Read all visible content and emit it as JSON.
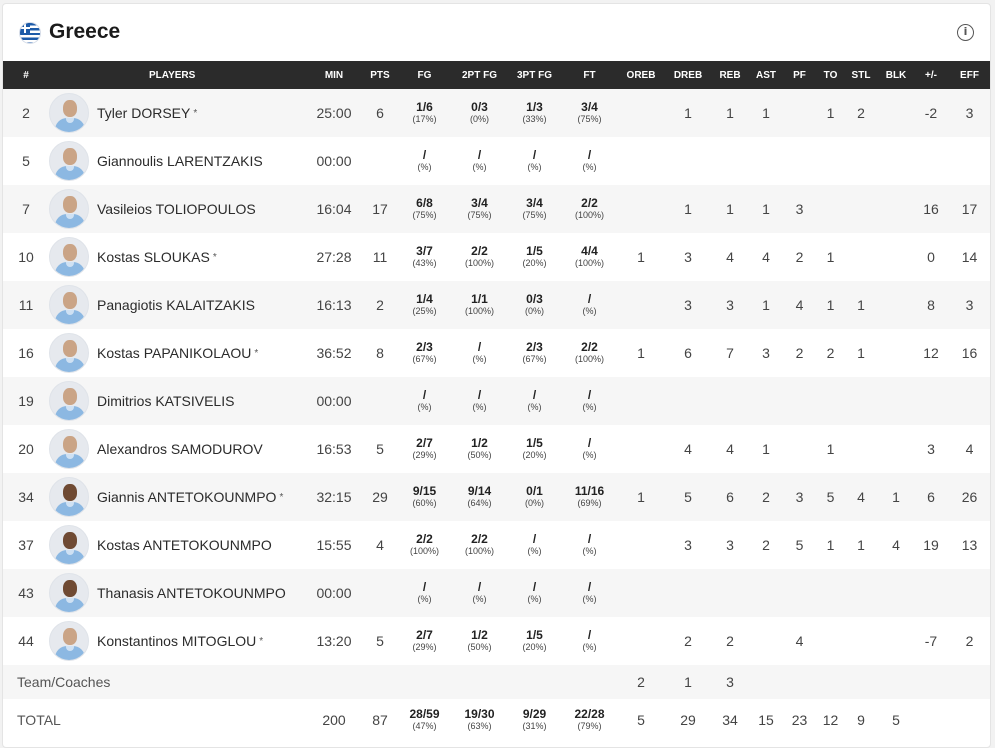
{
  "team": {
    "name": "Greece"
  },
  "columns": [
    "#",
    "PLAYERS",
    "MIN",
    "PTS",
    "FG",
    "2PT FG",
    "3PT FG",
    "FT",
    "OREB",
    "DREB",
    "REB",
    "AST",
    "PF",
    "TO",
    "STL",
    "BLK",
    "+/-",
    "EFF"
  ],
  "players": [
    {
      "no": "2",
      "name": "Tyler DORSEY",
      "starter": "*",
      "min": "25:00",
      "pts": "6",
      "fg": "1/6",
      "fg_pct": "(17%)",
      "fg2": "0/3",
      "fg2_pct": "(0%)",
      "fg3": "1/3",
      "fg3_pct": "(33%)",
      "ft": "3/4",
      "ft_pct": "(75%)",
      "oreb": "",
      "dreb": "1",
      "reb": "1",
      "ast": "1",
      "pf": "",
      "to": "1",
      "stl": "2",
      "blk": "",
      "pm": "-2",
      "eff": "3"
    },
    {
      "no": "5",
      "name": "Giannoulis LARENTZAKIS",
      "starter": "",
      "min": "00:00",
      "pts": "",
      "fg": "/",
      "fg_pct": "(%)",
      "fg2": "/",
      "fg2_pct": "(%)",
      "fg3": "/",
      "fg3_pct": "(%)",
      "ft": "/",
      "ft_pct": "(%)",
      "oreb": "",
      "dreb": "",
      "reb": "",
      "ast": "",
      "pf": "",
      "to": "",
      "stl": "",
      "blk": "",
      "pm": "",
      "eff": ""
    },
    {
      "no": "7",
      "name": "Vasileios TOLIOPOULOS",
      "starter": "",
      "min": "16:04",
      "pts": "17",
      "fg": "6/8",
      "fg_pct": "(75%)",
      "fg2": "3/4",
      "fg2_pct": "(75%)",
      "fg3": "3/4",
      "fg3_pct": "(75%)",
      "ft": "2/2",
      "ft_pct": "(100%)",
      "oreb": "",
      "dreb": "1",
      "reb": "1",
      "ast": "1",
      "pf": "3",
      "to": "",
      "stl": "",
      "blk": "",
      "pm": "16",
      "eff": "17"
    },
    {
      "no": "10",
      "name": "Kostas SLOUKAS",
      "starter": "*",
      "min": "27:28",
      "pts": "11",
      "fg": "3/7",
      "fg_pct": "(43%)",
      "fg2": "2/2",
      "fg2_pct": "(100%)",
      "fg3": "1/5",
      "fg3_pct": "(20%)",
      "ft": "4/4",
      "ft_pct": "(100%)",
      "oreb": "1",
      "dreb": "3",
      "reb": "4",
      "ast": "4",
      "pf": "2",
      "to": "1",
      "stl": "",
      "blk": "",
      "pm": "0",
      "eff": "14"
    },
    {
      "no": "11",
      "name": "Panagiotis KALAITZAKIS",
      "starter": "",
      "min": "16:13",
      "pts": "2",
      "fg": "1/4",
      "fg_pct": "(25%)",
      "fg2": "1/1",
      "fg2_pct": "(100%)",
      "fg3": "0/3",
      "fg3_pct": "(0%)",
      "ft": "/",
      "ft_pct": "(%)",
      "oreb": "",
      "dreb": "3",
      "reb": "3",
      "ast": "1",
      "pf": "4",
      "to": "1",
      "stl": "1",
      "blk": "",
      "pm": "8",
      "eff": "3"
    },
    {
      "no": "16",
      "name": "Kostas PAPANIKOLAOU",
      "starter": "*",
      "min": "36:52",
      "pts": "8",
      "fg": "2/3",
      "fg_pct": "(67%)",
      "fg2": "/",
      "fg2_pct": "(%)",
      "fg3": "2/3",
      "fg3_pct": "(67%)",
      "ft": "2/2",
      "ft_pct": "(100%)",
      "oreb": "1",
      "dreb": "6",
      "reb": "7",
      "ast": "3",
      "pf": "2",
      "to": "2",
      "stl": "1",
      "blk": "",
      "pm": "12",
      "eff": "16"
    },
    {
      "no": "19",
      "name": "Dimitrios KATSIVELIS",
      "starter": "",
      "min": "00:00",
      "pts": "",
      "fg": "/",
      "fg_pct": "(%)",
      "fg2": "/",
      "fg2_pct": "(%)",
      "fg3": "/",
      "fg3_pct": "(%)",
      "ft": "/",
      "ft_pct": "(%)",
      "oreb": "",
      "dreb": "",
      "reb": "",
      "ast": "",
      "pf": "",
      "to": "",
      "stl": "",
      "blk": "",
      "pm": "",
      "eff": ""
    },
    {
      "no": "20",
      "name": "Alexandros SAMODUROV",
      "starter": "",
      "min": "16:53",
      "pts": "5",
      "fg": "2/7",
      "fg_pct": "(29%)",
      "fg2": "1/2",
      "fg2_pct": "(50%)",
      "fg3": "1/5",
      "fg3_pct": "(20%)",
      "ft": "/",
      "ft_pct": "(%)",
      "oreb": "",
      "dreb": "4",
      "reb": "4",
      "ast": "1",
      "pf": "",
      "to": "1",
      "stl": "",
      "blk": "",
      "pm": "3",
      "eff": "4"
    },
    {
      "no": "34",
      "name": "Giannis ANTETOKOUNMPO",
      "starter": "*",
      "min": "32:15",
      "pts": "29",
      "fg": "9/15",
      "fg_pct": "(60%)",
      "fg2": "9/14",
      "fg2_pct": "(64%)",
      "fg3": "0/1",
      "fg3_pct": "(0%)",
      "ft": "11/16",
      "ft_pct": "(69%)",
      "oreb": "1",
      "dreb": "5",
      "reb": "6",
      "ast": "2",
      "pf": "3",
      "to": "5",
      "stl": "4",
      "blk": "1",
      "pm": "6",
      "eff": "26"
    },
    {
      "no": "37",
      "name": "Kostas ANTETOKOUNMPO",
      "starter": "",
      "min": "15:55",
      "pts": "4",
      "fg": "2/2",
      "fg_pct": "(100%)",
      "fg2": "2/2",
      "fg2_pct": "(100%)",
      "fg3": "/",
      "fg3_pct": "(%)",
      "ft": "/",
      "ft_pct": "(%)",
      "oreb": "",
      "dreb": "3",
      "reb": "3",
      "ast": "2",
      "pf": "5",
      "to": "1",
      "stl": "1",
      "blk": "4",
      "pm": "19",
      "eff": "13"
    },
    {
      "no": "43",
      "name": "Thanasis ANTETOKOUNMPO",
      "starter": "",
      "min": "00:00",
      "pts": "",
      "fg": "/",
      "fg_pct": "(%)",
      "fg2": "/",
      "fg2_pct": "(%)",
      "fg3": "/",
      "fg3_pct": "(%)",
      "ft": "/",
      "ft_pct": "(%)",
      "oreb": "",
      "dreb": "",
      "reb": "",
      "ast": "",
      "pf": "",
      "to": "",
      "stl": "",
      "blk": "",
      "pm": "",
      "eff": ""
    },
    {
      "no": "44",
      "name": "Konstantinos MITOGLOU",
      "starter": "*",
      "min": "13:20",
      "pts": "5",
      "fg": "2/7",
      "fg_pct": "(29%)",
      "fg2": "1/2",
      "fg2_pct": "(50%)",
      "fg3": "1/5",
      "fg3_pct": "(20%)",
      "ft": "/",
      "ft_pct": "(%)",
      "oreb": "",
      "dreb": "2",
      "reb": "2",
      "ast": "",
      "pf": "4",
      "to": "",
      "stl": "",
      "blk": "",
      "pm": "-7",
      "eff": "2"
    }
  ],
  "team_row": {
    "label": "Team/Coaches",
    "oreb": "2",
    "dreb": "1",
    "reb": "3"
  },
  "total_row": {
    "label": "TOTAL",
    "min": "200",
    "pts": "87",
    "fg": "28/59",
    "fg_pct": "(47%)",
    "fg2": "19/30",
    "fg2_pct": "(63%)",
    "fg3": "9/29",
    "fg3_pct": "(31%)",
    "ft": "22/28",
    "ft_pct": "(79%)",
    "oreb": "5",
    "dreb": "29",
    "reb": "34",
    "ast": "15",
    "pf": "23",
    "to": "12",
    "stl": "9",
    "blk": "5",
    "pm": "",
    "eff": ""
  }
}
